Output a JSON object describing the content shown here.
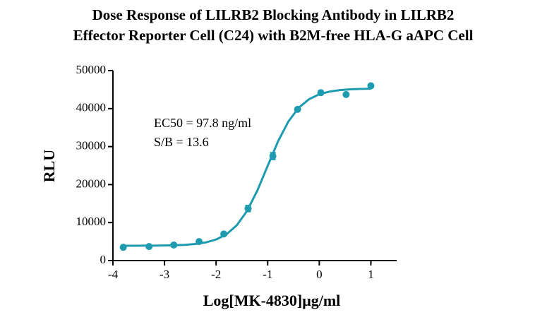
{
  "chart_data": {
    "type": "scatter",
    "title": [
      "Dose Response of LILRB2 Blocking Antibody in LILRB2",
      "Effector Reporter Cell (C24) with B2M-free HLA-G aAPC Cell"
    ],
    "x_label": "Log[MK-4830]μg/ml",
    "y_label": "RLU",
    "annotations": [
      "EC50 = 97.8 ng/ml",
      "S/B = 13.6"
    ],
    "color": "#1f9bb0",
    "x": [
      -3.8,
      -3.3,
      -2.82,
      -2.33,
      -1.85,
      -1.38,
      -0.9,
      -0.42,
      0.03,
      0.52,
      1.0
    ],
    "values": [
      3500,
      3700,
      4100,
      5000,
      7000,
      13700,
      27500,
      39800,
      44200,
      43700,
      46000
    ],
    "errors": [
      150,
      150,
      150,
      200,
      200,
      800,
      900,
      300,
      300,
      300,
      200
    ],
    "curve": {
      "x": [
        -3.8,
        -3.6,
        -3.4,
        -3.2,
        -3.0,
        -2.8,
        -2.6,
        -2.4,
        -2.2,
        -2.0,
        -1.8,
        -1.6,
        -1.4,
        -1.2,
        -1.0,
        -0.8,
        -0.6,
        -0.4,
        -0.2,
        0,
        0.2,
        0.4,
        0.6,
        0.8,
        1.0
      ],
      "y": [
        3905,
        3910,
        3919,
        3936,
        3968,
        4029,
        4145,
        4364,
        4775,
        5536,
        6909,
        9277,
        13067,
        18452,
        24937,
        31354,
        36585,
        40216,
        42465,
        43765,
        44480,
        44866,
        45071,
        45179,
        45237
      ]
    },
    "xlim": [
      -4,
      1.5
    ],
    "xticks": [
      -4,
      -3,
      -2,
      -1,
      0,
      1
    ],
    "ylim": [
      0,
      50000
    ],
    "yticks": [
      0,
      10000,
      20000,
      30000,
      40000,
      50000
    ]
  }
}
